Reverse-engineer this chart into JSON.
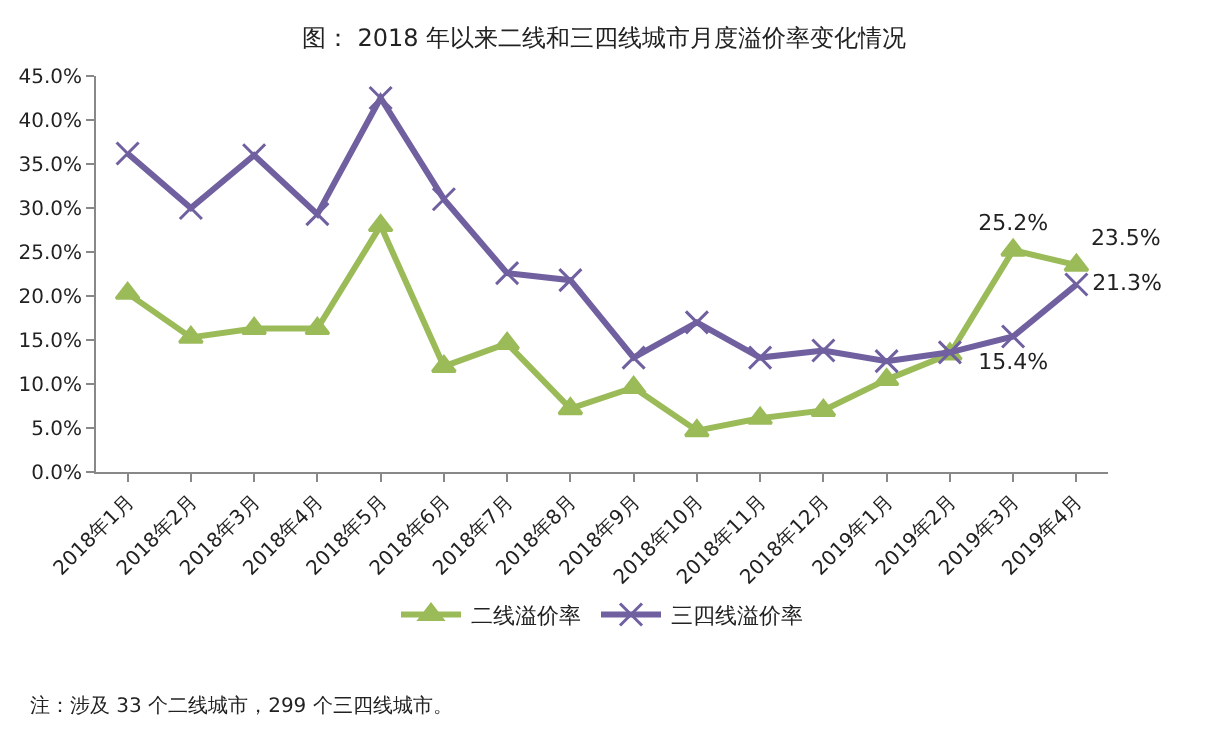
{
  "chart_data": {
    "type": "line",
    "title": "图： 2018 年以来二线和三四线城市月度溢价率变化情况",
    "categories": [
      "2018年1月",
      "2018年2月",
      "2018年3月",
      "2018年4月",
      "2018年5月",
      "2018年6月",
      "2018年7月",
      "2018年8月",
      "2018年9月",
      "2018年10月",
      "2018年11月",
      "2018年12月",
      "2019年1月",
      "2019年2月",
      "2019年3月",
      "2019年4月"
    ],
    "series": [
      {
        "name": "二线溢价率",
        "color": "#9bbb59",
        "marker": "triangle",
        "values": [
          20.3,
          15.3,
          16.3,
          16.3,
          28.0,
          12.0,
          14.6,
          7.2,
          9.6,
          4.7,
          6.1,
          7.0,
          10.5,
          13.4,
          25.2,
          23.5
        ],
        "value_labels": [
          null,
          null,
          null,
          null,
          null,
          null,
          null,
          null,
          null,
          null,
          null,
          null,
          null,
          null,
          "25.2%",
          "23.5%"
        ]
      },
      {
        "name": "三四线溢价率",
        "color": "#7060a0",
        "marker": "cross",
        "values": [
          36.2,
          30.0,
          36.0,
          29.3,
          42.5,
          31.0,
          22.6,
          21.8,
          13.0,
          17.0,
          13.0,
          13.8,
          12.6,
          13.6,
          15.4,
          21.3
        ],
        "value_labels": [
          null,
          null,
          null,
          null,
          null,
          null,
          null,
          null,
          null,
          null,
          null,
          null,
          null,
          null,
          "15.4%",
          "21.3%"
        ]
      }
    ],
    "ylim": [
      0,
      45
    ],
    "yticks": [
      {
        "value": 0,
        "label": "0.0%"
      },
      {
        "value": 5,
        "label": "5.0%"
      },
      {
        "value": 10,
        "label": "10.0%"
      },
      {
        "value": 15,
        "label": "15.0%"
      },
      {
        "value": 20,
        "label": "20.0%"
      },
      {
        "value": 25,
        "label": "25.0%"
      },
      {
        "value": 30,
        "label": "30.0%"
      },
      {
        "value": 35,
        "label": "35.0%"
      },
      {
        "value": 40,
        "label": "40.0%"
      },
      {
        "value": 45,
        "label": "45.0%"
      }
    ],
    "grid": false,
    "legend": "bottom",
    "line_style": "solid",
    "annotations": [
      "注：涉及 33 个二线城市，299 个三四线城市。"
    ]
  }
}
